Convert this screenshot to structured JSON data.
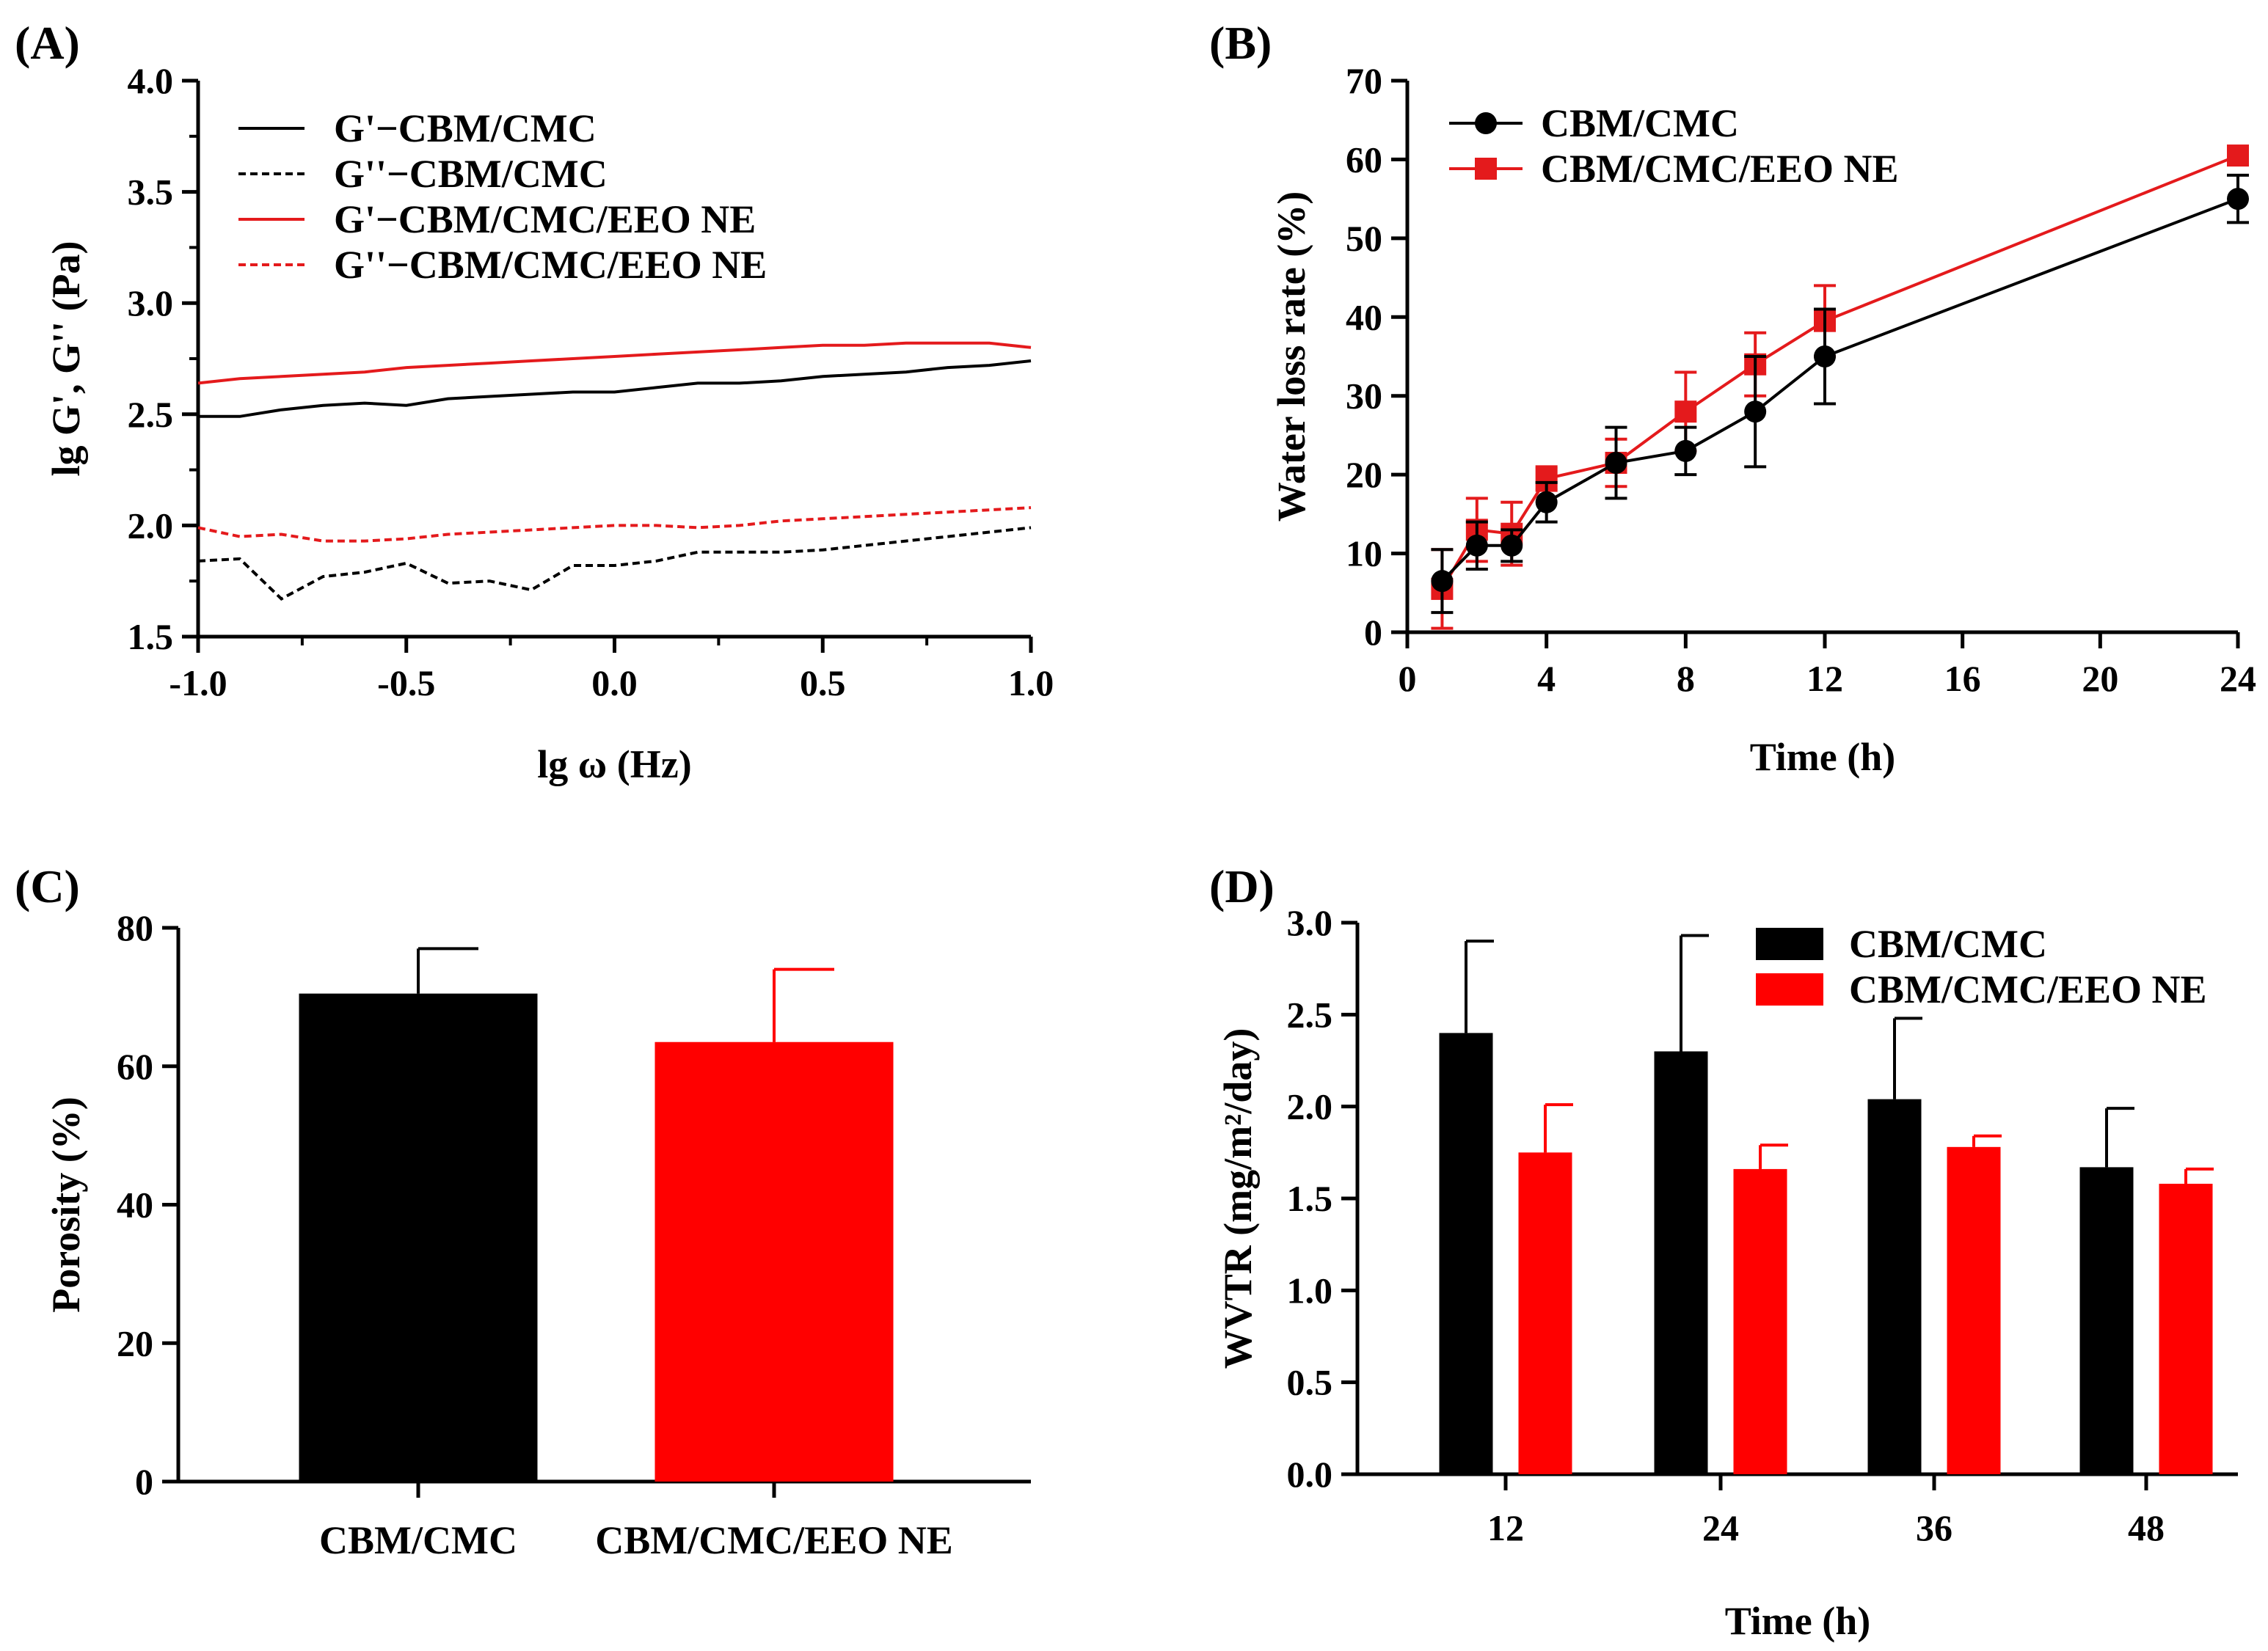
{
  "figure": {
    "colors": {
      "black": "#000000",
      "red": "#ff0000",
      "red_line": "#e41a1c"
    }
  },
  "chart_data": [
    {
      "id": "A",
      "panel_label": "(A)",
      "type": "line",
      "title": "",
      "xlabel": "lg ω (Hz)",
      "ylabel": "lg G', G'' (Pa)",
      "xlim": [
        -1.0,
        1.0
      ],
      "ylim": [
        1.5,
        4.0
      ],
      "xticks": [
        "-1.0",
        "-0.5",
        "0.0",
        "0.5",
        "1.0"
      ],
      "yticks": [
        "1.5",
        "2.0",
        "2.5",
        "3.0",
        "3.5",
        "4.0"
      ],
      "legend_position": "top-left",
      "series": [
        {
          "name": "G'−CBM/CMC",
          "color": "#000000",
          "dash": "solid",
          "x": [
            -1.0,
            -0.9,
            -0.8,
            -0.7,
            -0.6,
            -0.5,
            -0.4,
            -0.3,
            -0.2,
            -0.1,
            0.0,
            0.1,
            0.2,
            0.3,
            0.4,
            0.5,
            0.6,
            0.7,
            0.8,
            0.9,
            1.0
          ],
          "y": [
            2.49,
            2.49,
            2.52,
            2.54,
            2.55,
            2.54,
            2.57,
            2.58,
            2.59,
            2.6,
            2.6,
            2.62,
            2.64,
            2.64,
            2.65,
            2.67,
            2.68,
            2.69,
            2.71,
            2.72,
            2.74
          ]
        },
        {
          "name": "G''−CBM/CMC",
          "color": "#000000",
          "dash": "dashed",
          "x": [
            -1.0,
            -0.9,
            -0.8,
            -0.7,
            -0.6,
            -0.5,
            -0.4,
            -0.3,
            -0.2,
            -0.1,
            0.0,
            0.1,
            0.2,
            0.3,
            0.4,
            0.5,
            0.6,
            0.7,
            0.8,
            0.9,
            1.0
          ],
          "y": [
            1.84,
            1.85,
            1.67,
            1.77,
            1.79,
            1.83,
            1.74,
            1.75,
            1.71,
            1.82,
            1.82,
            1.84,
            1.88,
            1.88,
            1.88,
            1.89,
            1.91,
            1.93,
            1.95,
            1.97,
            1.99
          ]
        },
        {
          "name": "G'−CBM/CMC/EEO NE",
          "color": "#e41a1c",
          "dash": "solid",
          "x": [
            -1.0,
            -0.9,
            -0.8,
            -0.7,
            -0.6,
            -0.5,
            -0.4,
            -0.3,
            -0.2,
            -0.1,
            0.0,
            0.1,
            0.2,
            0.3,
            0.4,
            0.5,
            0.6,
            0.7,
            0.8,
            0.9,
            1.0
          ],
          "y": [
            2.64,
            2.66,
            2.67,
            2.68,
            2.69,
            2.71,
            2.72,
            2.73,
            2.74,
            2.75,
            2.76,
            2.77,
            2.78,
            2.79,
            2.8,
            2.81,
            2.81,
            2.82,
            2.82,
            2.82,
            2.8
          ]
        },
        {
          "name": "G''−CBM/CMC/EEO NE",
          "color": "#e41a1c",
          "dash": "dashed",
          "x": [
            -1.0,
            -0.9,
            -0.8,
            -0.7,
            -0.6,
            -0.5,
            -0.4,
            -0.3,
            -0.2,
            -0.1,
            0.0,
            0.1,
            0.2,
            0.3,
            0.4,
            0.5,
            0.6,
            0.7,
            0.8,
            0.9,
            1.0
          ],
          "y": [
            1.99,
            1.95,
            1.96,
            1.93,
            1.93,
            1.94,
            1.96,
            1.97,
            1.98,
            1.99,
            2.0,
            2.0,
            1.99,
            2.0,
            2.02,
            2.03,
            2.04,
            2.05,
            2.06,
            2.07,
            2.08
          ]
        }
      ]
    },
    {
      "id": "B",
      "panel_label": "(B)",
      "type": "line",
      "title": "",
      "xlabel": "Time (h)",
      "ylabel": "Water loss rate (%)",
      "x_positions_note": "categorical-like axis",
      "xticks": [
        "0",
        "4",
        "8",
        "12",
        "16",
        "20",
        "24"
      ],
      "yticks": [
        "0",
        "10",
        "20",
        "30",
        "40",
        "50",
        "60",
        "70"
      ],
      "ylim": [
        0,
        70
      ],
      "legend_position": "top-left",
      "series": [
        {
          "name": "CBM/CMC",
          "color": "#000000",
          "marker": "circle",
          "x": [
            1,
            2,
            3,
            4,
            6,
            8,
            10,
            12,
            24
          ],
          "y": [
            6.5,
            11,
            11,
            16.5,
            21.5,
            23,
            28,
            35,
            55
          ],
          "err": [
            4,
            3,
            2,
            2.5,
            4.5,
            3,
            7,
            6,
            3
          ]
        },
        {
          "name": "CBM/CMC/EEO NE",
          "color": "#e41a1c",
          "marker": "square",
          "x": [
            1,
            2,
            3,
            4,
            6,
            8,
            10,
            12,
            24
          ],
          "y": [
            5.5,
            13,
            12.5,
            19.5,
            21.5,
            28,
            34,
            39.5,
            60.5
          ],
          "err": [
            5,
            4,
            4,
            1.5,
            3,
            5,
            4,
            4.5,
            0.5
          ]
        }
      ]
    },
    {
      "id": "C",
      "panel_label": "(C)",
      "type": "bar",
      "title": "",
      "xlabel": "",
      "ylabel": "Porosity (%)",
      "ylim": [
        0,
        80
      ],
      "yticks": [
        "0",
        "20",
        "40",
        "60",
        "80"
      ],
      "categories": [
        "CBM/CMC",
        "CBM/CMC/EEO NE"
      ],
      "values": [
        70.5,
        63.5
      ],
      "errors": [
        6.5,
        10.5
      ],
      "colors": [
        "#000000",
        "#ff0000"
      ]
    },
    {
      "id": "D",
      "panel_label": "(D)",
      "type": "bar",
      "title": "",
      "xlabel": "Time (h)",
      "ylabel": "WVTR (mg/m²/day)",
      "ylim": [
        0,
        3.0
      ],
      "yticks": [
        "0.0",
        "0.5",
        "1.0",
        "1.5",
        "2.0",
        "2.5",
        "3.0"
      ],
      "categories": [
        "12",
        "24",
        "36",
        "48"
      ],
      "legend_position": "top-right",
      "series": [
        {
          "name": "CBM/CMC",
          "color": "#000000",
          "values": [
            2.4,
            2.3,
            2.04,
            1.67
          ],
          "errors": [
            0.5,
            0.63,
            0.44,
            0.32
          ]
        },
        {
          "name": "CBM/CMC/EEO NE",
          "color": "#ff0000",
          "values": [
            1.75,
            1.66,
            1.78,
            1.58
          ],
          "errors": [
            0.26,
            0.13,
            0.06,
            0.08
          ]
        }
      ]
    }
  ]
}
